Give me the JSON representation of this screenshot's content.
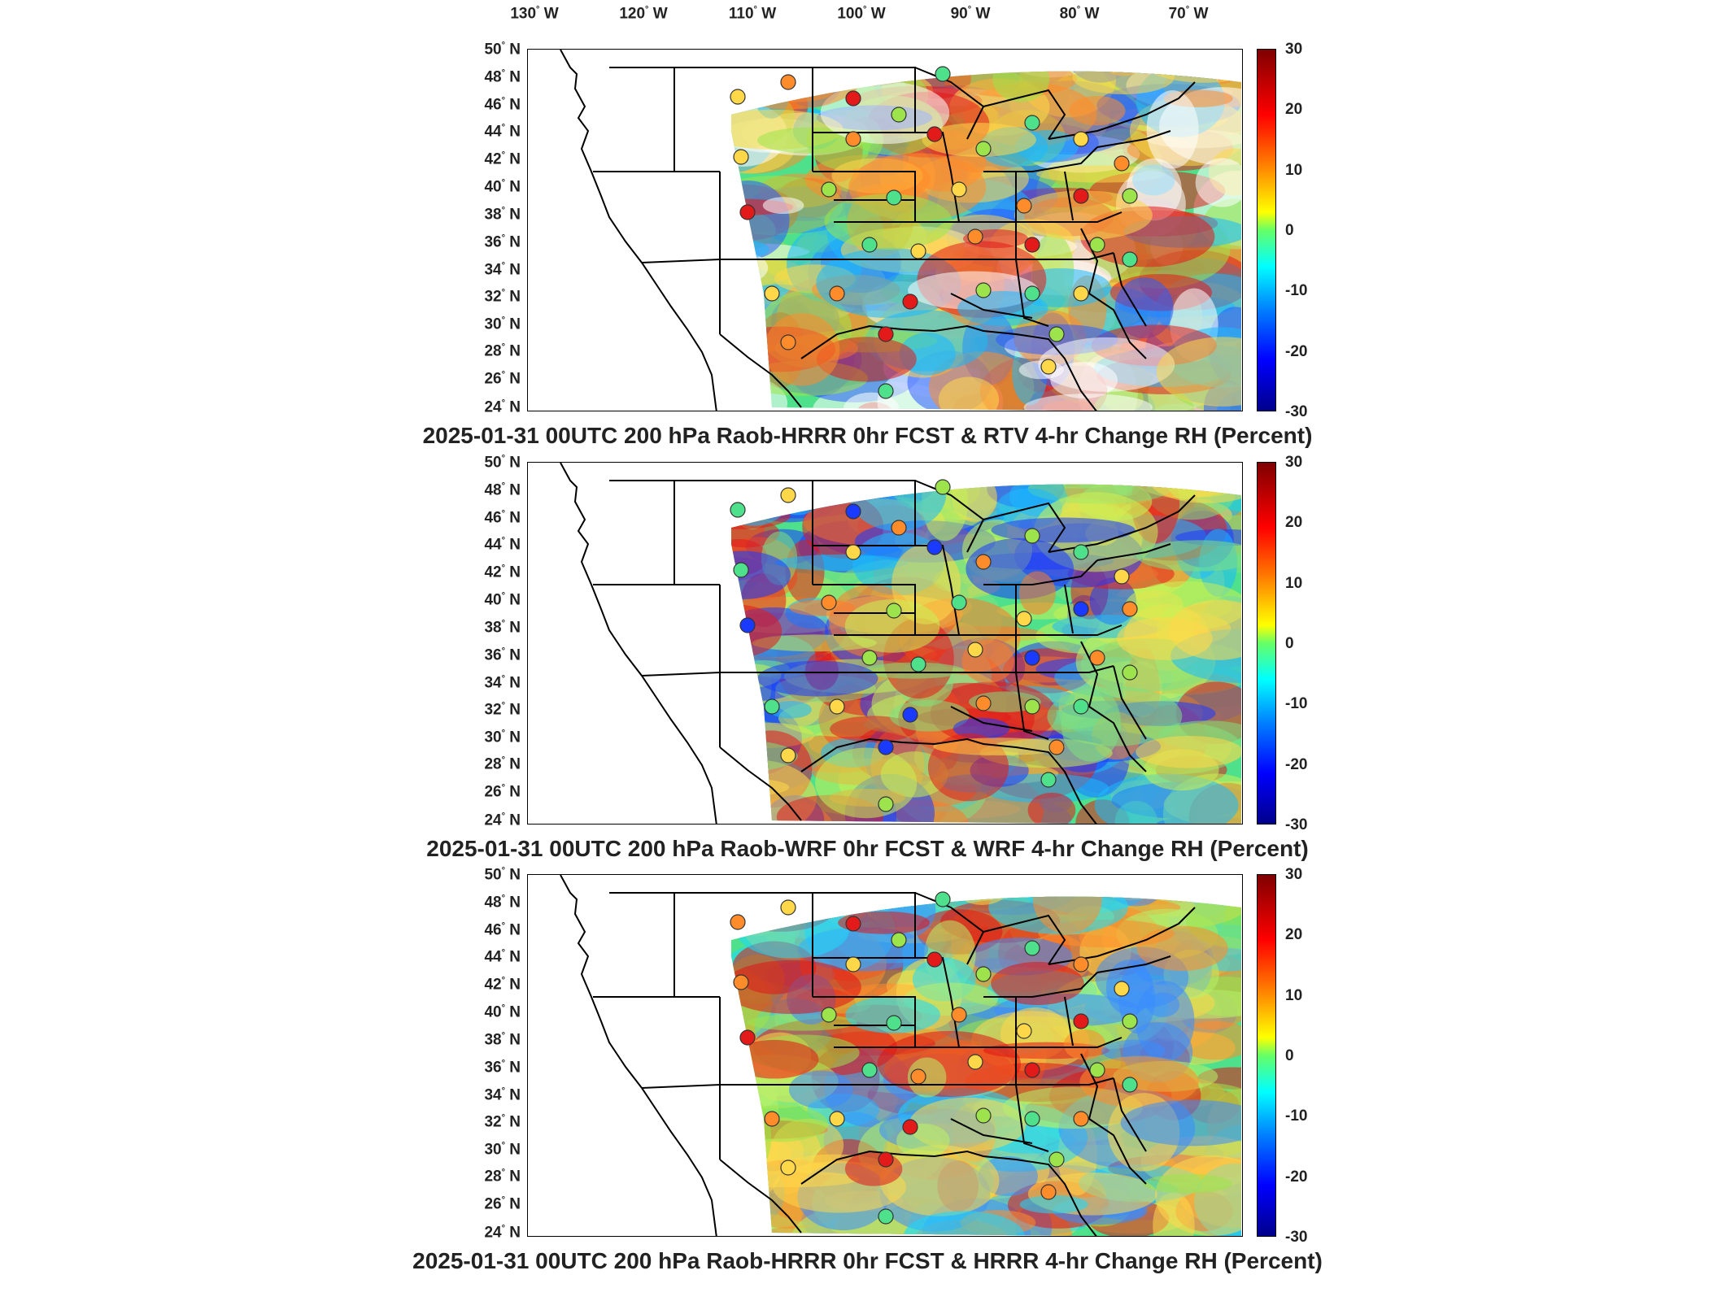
{
  "lon_labels": [
    "130",
    "120",
    "110",
    "100",
    "90",
    "80",
    "70"
  ],
  "lon_suffix": "W",
  "lat_labels": [
    "50",
    "48",
    "46",
    "44",
    "42",
    "40",
    "38",
    "36",
    "34",
    "32",
    "30",
    "28",
    "26",
    "24"
  ],
  "lat_suffix": "N",
  "colorbar_ticks": [
    "30",
    "20",
    "10",
    "0",
    "-10",
    "-20",
    "-30"
  ],
  "colorbar_range": [
    -30,
    30
  ],
  "colormap": [
    "#00008b",
    "#0000ff",
    "#0080ff",
    "#00ffff",
    "#66ff66",
    "#ffff00",
    "#ff8000",
    "#ff0000",
    "#7f0000"
  ],
  "panels": [
    {
      "caption": "2025-01-31 00UTC 200 hPa Raob-HRRR 0hr FCST & RTV 4-hr Change RH (Percent)"
    },
    {
      "caption": "2025-01-31 00UTC 200 hPa Raob-WRF 0hr FCST & WRF 4-hr Change RH (Percent)"
    },
    {
      "caption": "2025-01-31 00UTC 200 hPa Raob-HRRR 0hr FCST & HRRR 4-hr Change RH (Percent)"
    }
  ]
}
